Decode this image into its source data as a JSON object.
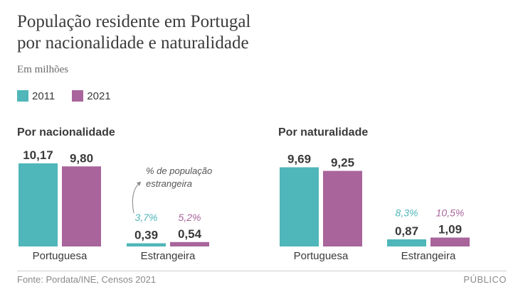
{
  "title_line1": "População residente em Portugal",
  "title_line2": "por nacionalidade e naturalidade",
  "subtitle": "Em milhões",
  "legend": [
    {
      "label": "2011",
      "color": "#4fb6b9"
    },
    {
      "label": "2021",
      "color": "#a8649b"
    }
  ],
  "annotation": [
    "% de população",
    "estrangeira"
  ],
  "source": "Fonte: Pordata/INE, Censos 2021",
  "brand": "PÚBLICO",
  "chart_data": [
    {
      "type": "bar",
      "title": "Por nacionalidade",
      "categories": [
        "Portuguesa",
        "Estrangeira"
      ],
      "series": [
        {
          "name": "2011",
          "values": [
            10.17,
            0.39
          ],
          "labels": [
            "10,17",
            "0,39"
          ],
          "color": "#4fb6b9"
        },
        {
          "name": "2021",
          "values": [
            9.8,
            0.54
          ],
          "labels": [
            "9,80",
            "0,54"
          ],
          "color": "#a8649b"
        }
      ],
      "pct_labels": [
        {
          "category": "Estrangeira",
          "values": [
            "3,7%",
            "5,2%"
          ]
        }
      ],
      "ylim": [
        0,
        10.17
      ]
    },
    {
      "type": "bar",
      "title": "Por naturalidade",
      "categories": [
        "Portuguesa",
        "Estrangeira"
      ],
      "series": [
        {
          "name": "2011",
          "values": [
            9.69,
            0.87
          ],
          "labels": [
            "9,69",
            "0,87"
          ],
          "color": "#4fb6b9"
        },
        {
          "name": "2021",
          "values": [
            9.25,
            1.09
          ],
          "labels": [
            "9,25",
            "1,09"
          ],
          "color": "#a8649b"
        }
      ],
      "pct_labels": [
        {
          "category": "Estrangeira",
          "values": [
            "8,3%",
            "10,5%"
          ]
        }
      ],
      "ylim": [
        0,
        10.17
      ]
    }
  ]
}
